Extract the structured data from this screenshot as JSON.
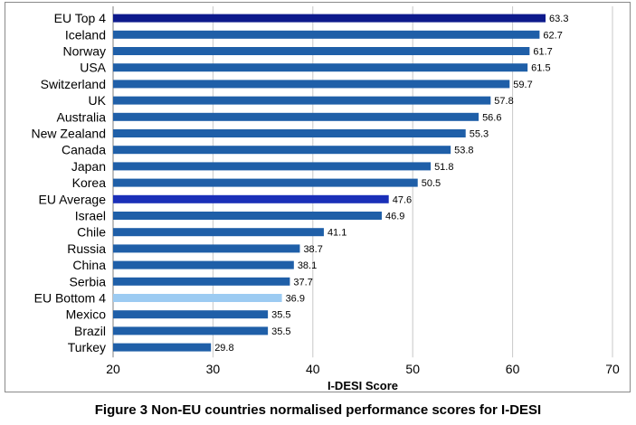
{
  "chart_data": {
    "type": "bar",
    "orientation": "horizontal",
    "categories": [
      "EU Top 4",
      "Iceland",
      "Norway",
      "USA",
      "Switzerland",
      "UK",
      "Australia",
      "New Zealand",
      "Canada",
      "Japan",
      "Korea",
      "EU Average",
      "Israel",
      "Chile",
      "Russia",
      "China",
      "Serbia",
      "EU Bottom 4",
      "Mexico",
      "Brazil",
      "Turkey"
    ],
    "values": [
      63.3,
      62.7,
      61.7,
      61.5,
      59.7,
      57.8,
      56.6,
      55.3,
      53.8,
      51.8,
      50.5,
      47.6,
      46.9,
      41.1,
      38.7,
      38.1,
      37.7,
      36.9,
      35.5,
      35.5,
      29.8
    ],
    "value_labels": [
      "63.3",
      "62.7",
      "61.7",
      "61.5",
      "59.7",
      "57.8",
      "56.6",
      "55.3",
      "53.8",
      "51.8",
      "50.5",
      "47.6",
      "46.9",
      "41.1",
      "38.7",
      "38.1",
      "37.7",
      "36.9",
      "35.5",
      "35.5",
      "29.8"
    ],
    "bar_colors": [
      "#0d1a8c",
      "#1f5fa8",
      "#1f5fa8",
      "#1f5fa8",
      "#1f5fa8",
      "#1f5fa8",
      "#1f5fa8",
      "#1f5fa8",
      "#1f5fa8",
      "#1f5fa8",
      "#1f5fa8",
      "#1a2fb8",
      "#1f5fa8",
      "#1f5fa8",
      "#1f5fa8",
      "#1f5fa8",
      "#1f5fa8",
      "#9ccbf2",
      "#1f5fa8",
      "#1f5fa8",
      "#1f5fa8"
    ],
    "xlabel": "I-DESI Score",
    "ylabel": "",
    "xlim": [
      20,
      70
    ],
    "xticks": [
      20,
      30,
      40,
      50,
      60,
      70
    ],
    "xtick_labels": [
      "20",
      "30",
      "40",
      "50",
      "60",
      "70"
    ],
    "grid": "vertical",
    "legend": "none"
  },
  "caption": "Figure 3  Non-EU countries normalised performance scores for I-DESI"
}
